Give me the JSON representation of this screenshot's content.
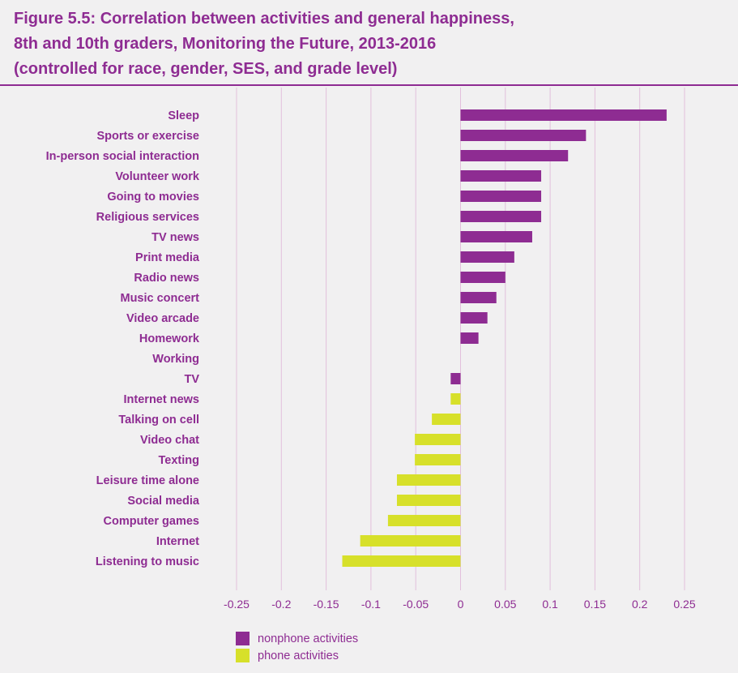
{
  "title": {
    "line1": "Figure 5.5: Correlation between activities and general happiness,",
    "line2": "8th and 10th graders, Monitoring the Future, 2013-2016",
    "line3": "(controlled for race, gender, SES, and grade level)"
  },
  "colors": {
    "nonphone": "#8e2c92",
    "phone": "#d7e02a",
    "text": "#8e2c92",
    "grid": "#e2bfdc"
  },
  "legend": {
    "nonphone_label": "nonphone activities",
    "phone_label": "phone activities"
  },
  "chart_data": {
    "type": "bar",
    "orientation": "horizontal",
    "title": "Correlation between activities and general happiness",
    "xlabel": "",
    "ylabel": "",
    "xlim": [
      -0.25,
      0.25
    ],
    "xticks": [
      -0.25,
      -0.2,
      -0.15,
      -0.1,
      -0.05,
      0,
      0.05,
      0.1,
      0.15,
      0.2,
      0.25
    ],
    "xtick_labels": [
      "-0.25",
      "-0.2",
      "-0.15",
      "-0.1",
      "-0.05",
      "0",
      "0.05",
      "0.1",
      "0.15",
      "0.2",
      "0.25"
    ],
    "grid": true,
    "legend_position": "bottom",
    "categories": [
      "Sleep",
      "Sports or exercise",
      "In-person social interaction",
      "Volunteer work",
      "Going to movies",
      "Religious services",
      "TV news",
      "Print media",
      "Radio news",
      "Music concert",
      "Video arcade",
      "Homework",
      "Working",
      "TV",
      "Internet news",
      "Talking on cell",
      "Video chat",
      "Texting",
      "Leisure time alone",
      "Social media",
      "Computer games",
      "Internet",
      "Listening to music"
    ],
    "values": [
      0.23,
      0.14,
      0.12,
      0.09,
      0.09,
      0.09,
      0.08,
      0.06,
      0.05,
      0.04,
      0.03,
      0.02,
      0,
      -0.011,
      -0.011,
      -0.032,
      -0.051,
      -0.051,
      -0.071,
      -0.071,
      -0.081,
      -0.112,
      -0.132
    ],
    "groups": [
      "nonphone",
      "nonphone",
      "nonphone",
      "nonphone",
      "nonphone",
      "nonphone",
      "nonphone",
      "nonphone",
      "nonphone",
      "nonphone",
      "nonphone",
      "nonphone",
      "nonphone",
      "nonphone",
      "phone",
      "phone",
      "phone",
      "phone",
      "phone",
      "phone",
      "phone",
      "phone",
      "phone"
    ],
    "series": [
      {
        "name": "nonphone activities",
        "key": "nonphone"
      },
      {
        "name": "phone activities",
        "key": "phone"
      }
    ]
  }
}
